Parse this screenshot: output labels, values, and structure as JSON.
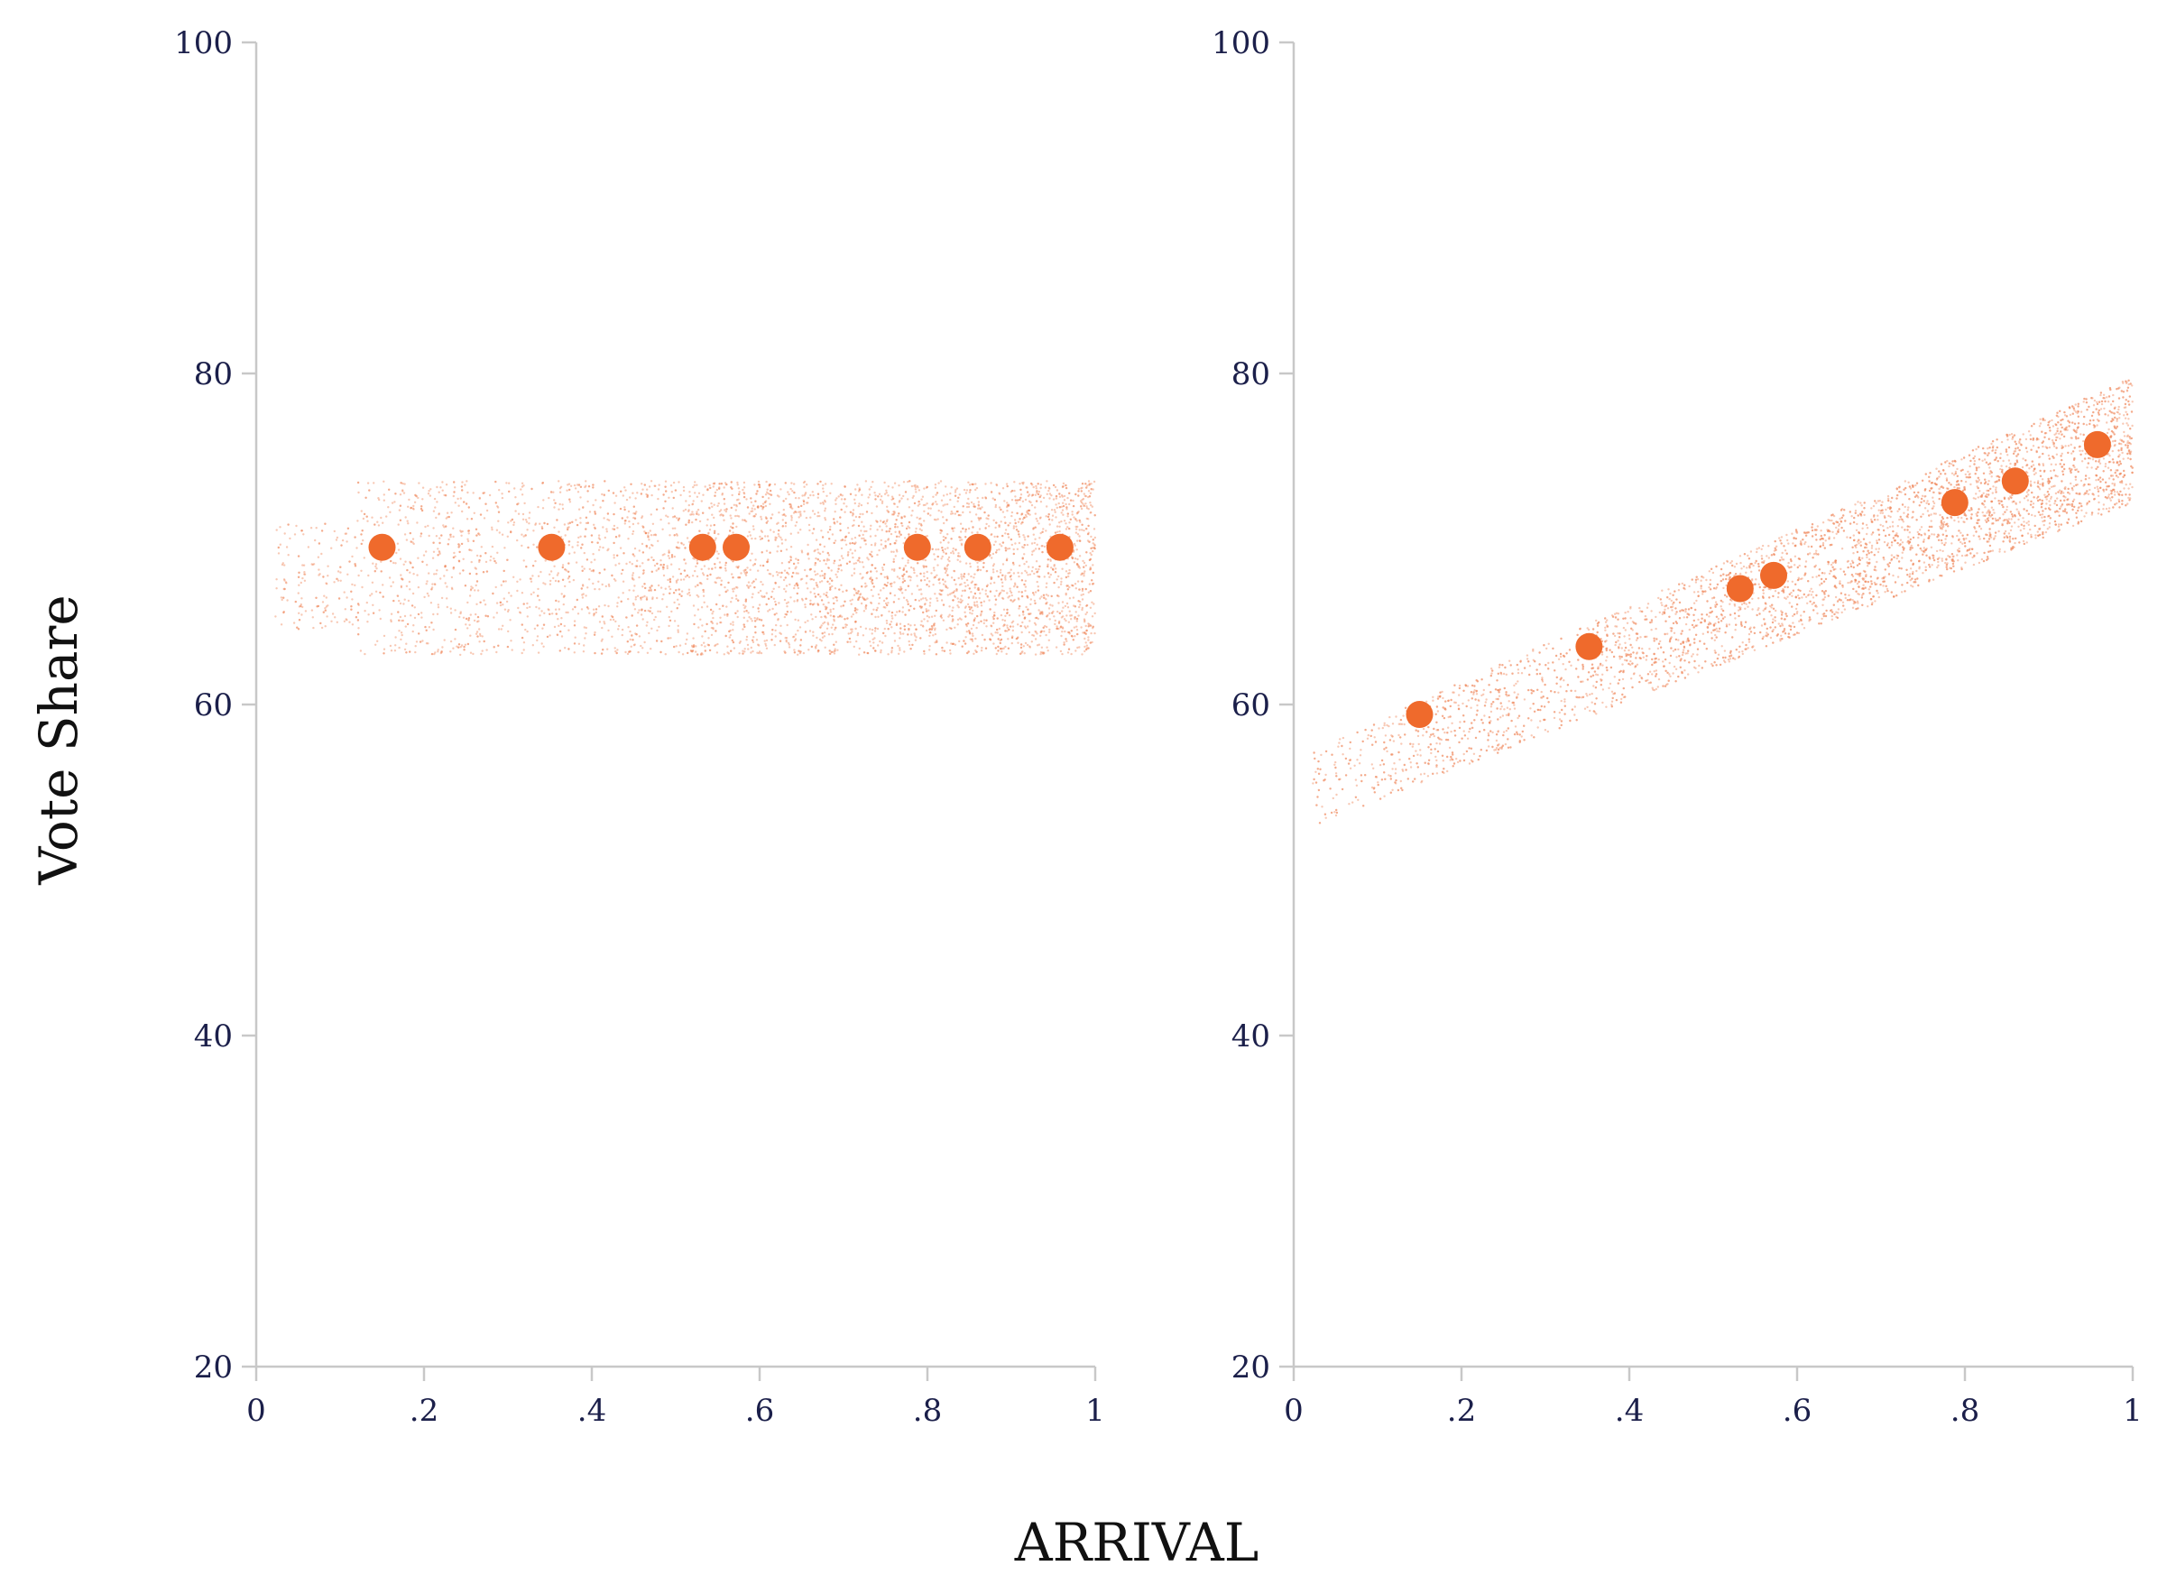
{
  "colors": {
    "accent": "#ef6a2c",
    "cloud": "#f0875a",
    "axis": "#c8c8c8",
    "tick_text": "#1b1f4a",
    "title_text": "#111111"
  },
  "chart_data": [
    {
      "type": "scatter",
      "xlabel": "ARRIVAL",
      "ylabel": "Vote Share",
      "xlim": [
        0,
        1
      ],
      "ylim": [
        20,
        100
      ],
      "x_ticks": [
        0,
        0.2,
        0.4,
        0.6,
        0.8,
        1
      ],
      "x_tick_labels": [
        "0",
        ".2",
        ".4",
        ".6",
        ".8",
        "1"
      ],
      "y_ticks": [
        20,
        40,
        60,
        80,
        100
      ],
      "y_tick_labels": [
        "20",
        "40",
        "60",
        "80",
        "100"
      ],
      "grid": false,
      "series": [
        {
          "kind": "points",
          "x": [
            0.15,
            0.352,
            0.532,
            0.572,
            0.788,
            0.86,
            0.958
          ],
          "y": [
            69.5,
            69.5,
            69.5,
            69.5,
            69.5,
            69.5,
            69.5
          ]
        },
        {
          "kind": "cloud",
          "x_range": [
            0.02,
            1.0
          ],
          "y_band": [
            63,
            73.5
          ],
          "slope": 0
        }
      ]
    },
    {
      "type": "scatter",
      "xlabel": "ARRIVAL",
      "ylabel": "Vote Share",
      "xlim": [
        0,
        1
      ],
      "ylim": [
        20,
        100
      ],
      "x_ticks": [
        0,
        0.2,
        0.4,
        0.6,
        0.8,
        1
      ],
      "x_tick_labels": [
        "0",
        ".2",
        ".4",
        ".6",
        ".8",
        "1"
      ],
      "y_ticks": [
        20,
        40,
        60,
        80,
        100
      ],
      "y_tick_labels": [
        "20",
        "40",
        "60",
        "80",
        "100"
      ],
      "grid": false,
      "series": [
        {
          "kind": "points",
          "x": [
            0.15,
            0.352,
            0.532,
            0.572,
            0.788,
            0.86,
            0.958
          ],
          "y": [
            59.4,
            63.5,
            67.0,
            67.8,
            72.2,
            73.5,
            75.7
          ]
        },
        {
          "kind": "cloud",
          "x_range": [
            0.02,
            1.0
          ],
          "y_band_center_at_x0": 54.5,
          "slope": 21.5,
          "y_half_width": 3.8
        }
      ]
    }
  ]
}
